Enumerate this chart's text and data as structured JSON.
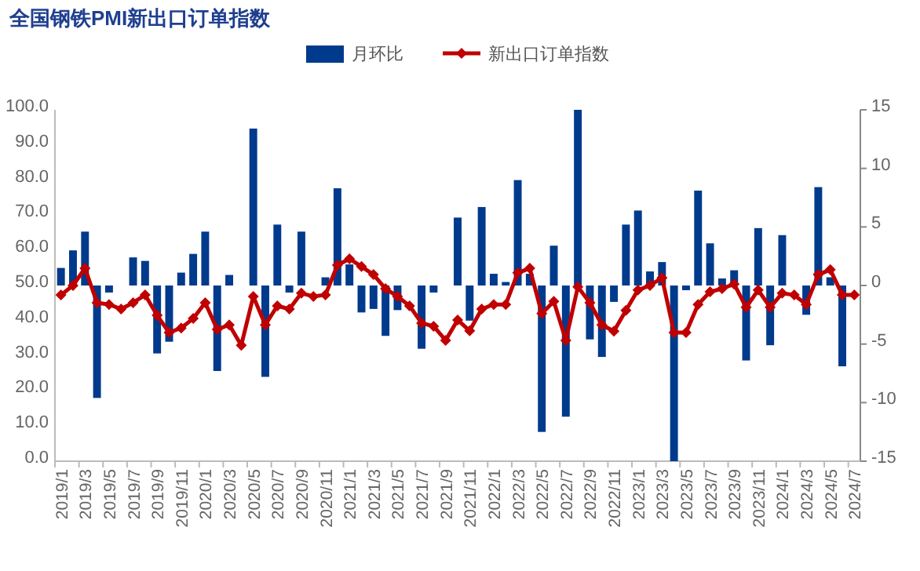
{
  "chart_data": {
    "type": "bar",
    "title": "全国钢铁PMI新出口订单指数",
    "categories": [
      "2019/1",
      null,
      "2019/3",
      null,
      "2019/5",
      null,
      "2019/7",
      null,
      "2019/9",
      null,
      "2019/11",
      null,
      "2020/1",
      null,
      "2020/3",
      null,
      "2020/5",
      null,
      "2020/7",
      null,
      "2020/9",
      null,
      "2020/11",
      null,
      "2021/1",
      null,
      "2021/3",
      null,
      "2021/5",
      null,
      "2021/7",
      null,
      "2021/9",
      null,
      "2021/11",
      null,
      "2022/1",
      null,
      "2022/3",
      null,
      "2022/5",
      null,
      "2022/7",
      null,
      "2022/9",
      null,
      "2022/11",
      null,
      "2023/1",
      null,
      "2023/3",
      null,
      "2023/5",
      null,
      "2023/7",
      null,
      "2023/9",
      null,
      "2023/11",
      null,
      "2024/1",
      null,
      "2024/3",
      null,
      "2024/5",
      null,
      "2024/7"
    ],
    "series": [
      {
        "name": "月环比",
        "axis": "y2",
        "color": "#003a8c",
        "values": [
          1.5,
          3.0,
          4.6,
          -9.6,
          -0.6,
          null,
          2.4,
          2.1,
          -5.8,
          -4.8,
          1.1,
          2.7,
          4.6,
          -7.3,
          0.9,
          null,
          13.4,
          -7.8,
          5.2,
          -0.6,
          4.6,
          null,
          0.7,
          8.3,
          1.8,
          -2.3,
          -2.0,
          -4.3,
          -2.1,
          null,
          -5.4,
          -0.6,
          null,
          5.8,
          -3.0,
          6.7,
          1.0,
          0.3,
          9.0,
          1.0,
          -12.5,
          3.4,
          -11.2,
          15.0,
          -4.6,
          -6.1,
          -1.4,
          5.2,
          6.4,
          1.2,
          2.0,
          -15.0,
          -0.4,
          8.1,
          3.6,
          0.6,
          1.3,
          -6.4,
          4.9,
          -5.1,
          4.3,
          null,
          -2.5,
          8.4,
          0.7,
          -6.9,
          null
        ]
      },
      {
        "name": "新出口订单指数",
        "type": "line",
        "axis": "y",
        "color": "#c00000",
        "marker": "diamond",
        "values": [
          47.3,
          50.0,
          54.9,
          45.1,
          44.6,
          43.3,
          45.1,
          47.3,
          41.5,
          36.6,
          37.9,
          40.6,
          45.1,
          37.5,
          38.8,
          33.0,
          46.9,
          38.8,
          44.2,
          43.3,
          47.8,
          46.9,
          47.3,
          55.8,
          57.6,
          55.4,
          53.1,
          49.1,
          46.9,
          44.2,
          39.3,
          38.4,
          34.4,
          40.2,
          37.1,
          43.3,
          44.6,
          44.6,
          53.6,
          54.9,
          42.0,
          45.5,
          34.4,
          49.6,
          45.1,
          38.8,
          37.0,
          42.9,
          48.7,
          50.0,
          52.2,
          36.6,
          36.6,
          44.6,
          48.2,
          49.1,
          50.4,
          43.8,
          48.7,
          43.8,
          47.8,
          47.3,
          44.6,
          53.1,
          54.5,
          47.3,
          47.3
        ]
      }
    ],
    "ylim": [
      0,
      100
    ],
    "yticks": [
      {
        "value": 0,
        "label": "0.0"
      },
      {
        "value": 10,
        "label": "10.0"
      },
      {
        "value": 20,
        "label": "20.0"
      },
      {
        "value": 30,
        "label": "30.0"
      },
      {
        "value": 40,
        "label": "40.0"
      },
      {
        "value": 50,
        "label": "50.0"
      },
      {
        "value": 60,
        "label": "60.0"
      },
      {
        "value": 70,
        "label": "70.0"
      },
      {
        "value": 80,
        "label": "80.0"
      },
      {
        "value": 90,
        "label": "90.0"
      },
      {
        "value": 100,
        "label": "100.0"
      }
    ],
    "y2lim": [
      -15,
      15
    ],
    "y2ticks": [
      -15,
      -10,
      -5,
      0,
      5,
      10,
      15
    ],
    "legend": "top",
    "grid": false
  }
}
